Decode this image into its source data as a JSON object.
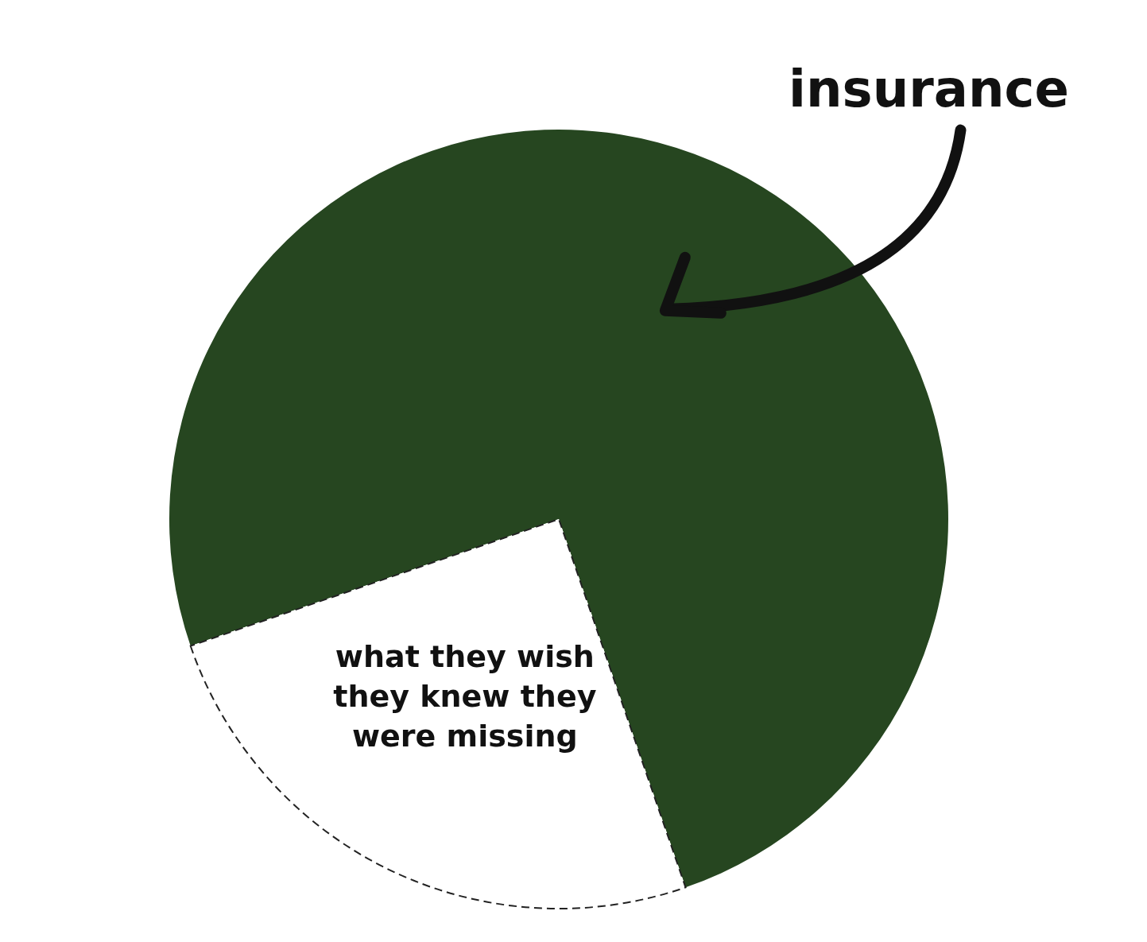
{
  "chart_data": {
    "type": "pie",
    "categories": [
      "insurance",
      "what they wish they knew they were missing"
    ],
    "values": [
      75,
      25
    ],
    "colors": [
      "#264620",
      "#ffffff"
    ],
    "legend": false
  }
}
